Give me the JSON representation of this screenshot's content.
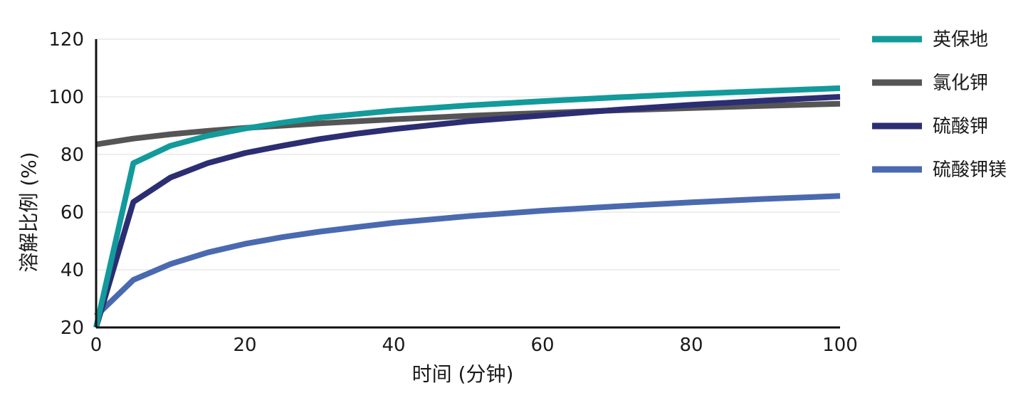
{
  "chart_data": {
    "type": "line",
    "xlabel": "时间 (分钟)",
    "ylabel": "溶解比例 (%)",
    "xlim": [
      0,
      100
    ],
    "ylim": [
      20,
      120
    ],
    "x_ticks": [
      0,
      20,
      40,
      60,
      80,
      100
    ],
    "y_ticks": [
      20,
      40,
      60,
      80,
      100,
      120
    ],
    "grid": "horizontal",
    "legend_position": "right",
    "series": [
      {
        "name": "英保地",
        "color": "#139a9b",
        "x": [
          0,
          5,
          10,
          15,
          20,
          25,
          30,
          35,
          40,
          50,
          60,
          70,
          80,
          90,
          100
        ],
        "y": [
          20,
          77,
          83,
          86.5,
          89,
          91,
          92.8,
          94,
          95.2,
          97,
          98.5,
          99.8,
          101,
          102,
          103
        ]
      },
      {
        "name": "氯化钾",
        "color": "#555555",
        "x": [
          0,
          5,
          10,
          15,
          20,
          30,
          40,
          50,
          60,
          70,
          80,
          90,
          100
        ],
        "y": [
          83.5,
          85.5,
          87,
          88.2,
          89.2,
          90.8,
          92.2,
          93.4,
          94.4,
          95.3,
          96.1,
          96.9,
          97.6
        ]
      },
      {
        "name": "硫酸钾",
        "color": "#2b2e72",
        "x": [
          0,
          5,
          10,
          15,
          20,
          25,
          30,
          35,
          40,
          50,
          60,
          70,
          80,
          90,
          100
        ],
        "y": [
          20,
          63.5,
          72,
          77,
          80.5,
          83,
          85.3,
          87.2,
          88.8,
          91.5,
          93.5,
          95.5,
          97.2,
          98.7,
          100
        ]
      },
      {
        "name": "硫酸钾镁",
        "color": "#4a6ab0",
        "x": [
          0,
          5,
          10,
          15,
          20,
          25,
          30,
          35,
          40,
          50,
          60,
          70,
          80,
          90,
          100
        ],
        "y": [
          24,
          36.5,
          42,
          46,
          49,
          51.3,
          53.2,
          54.8,
          56.3,
          58.6,
          60.5,
          62,
          63.4,
          64.6,
          65.6
        ]
      }
    ]
  }
}
